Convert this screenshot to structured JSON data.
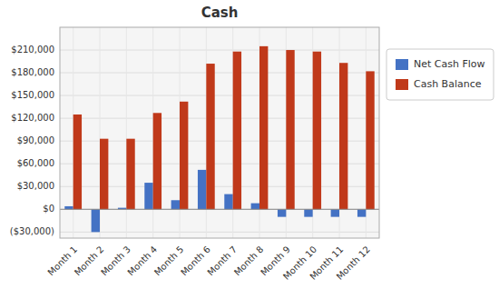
{
  "chart_data": {
    "type": "bar",
    "title": "Cash",
    "categories": [
      "Month 1",
      "Month 2",
      "Month 3",
      "Month 4",
      "Month 5",
      "Month 6",
      "Month 7",
      "Month 8",
      "Month 9",
      "Month 10",
      "Month 11",
      "Month 12"
    ],
    "series": [
      {
        "name": "Net Cash Flow",
        "color": "#4472C4",
        "values": [
          4000,
          -30000,
          2000,
          35000,
          12000,
          52000,
          20000,
          8000,
          -10000,
          -10000,
          -10000,
          -10000
        ]
      },
      {
        "name": "Cash Balance",
        "color": "#C0391A",
        "values": [
          125000,
          93000,
          93000,
          127000,
          142000,
          192000,
          208000,
          215000,
          210000,
          208000,
          193000,
          182000
        ]
      }
    ],
    "ylim": [
      -38000,
      240000
    ],
    "yticks": [
      {
        "value": -30000,
        "label": "($30,000)"
      },
      {
        "value": 0,
        "label": "$0"
      },
      {
        "value": 30000,
        "label": "$30,000"
      },
      {
        "value": 60000,
        "label": "$60,000"
      },
      {
        "value": 90000,
        "label": "$90,000"
      },
      {
        "value": 120000,
        "label": "$120,000"
      },
      {
        "value": 150000,
        "label": "$150,000"
      },
      {
        "value": 180000,
        "label": "$180,000"
      },
      {
        "value": 210000,
        "label": "$210,000"
      }
    ],
    "grid": true,
    "legend": "right"
  }
}
